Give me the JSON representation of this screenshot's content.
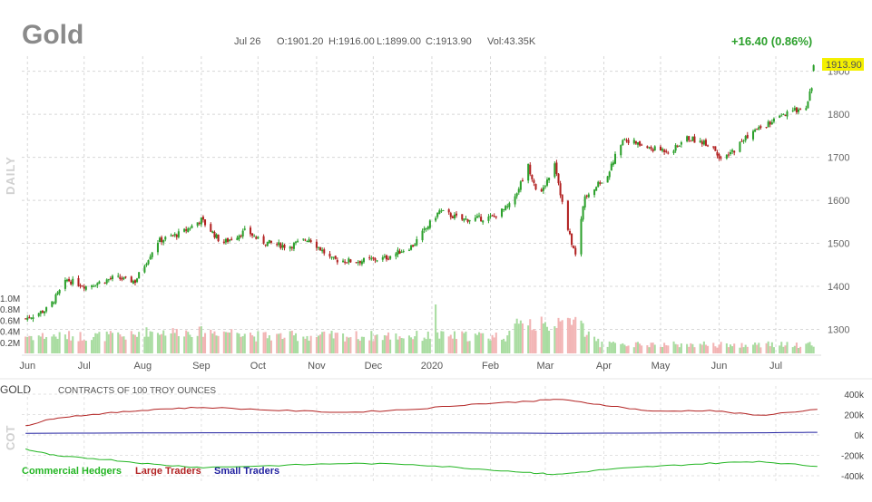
{
  "header": {
    "title": "Gold",
    "date": "Jul 26",
    "open": "O:1901.20",
    "high": "H:1916.00",
    "low": "L:1899.00",
    "close": "C:1913.90",
    "volume": "Vol:43.35K",
    "change": "+16.40 (0.86%)"
  },
  "labels": {
    "daily": "DAILY",
    "cot": "COT",
    "cot_symbol": "GOLD",
    "cot_units": "CONTRACTS OF 100 TROY OUNCES"
  },
  "colors": {
    "up": "#2ca02c",
    "down": "#b22222",
    "vol_up": "#a8dca0",
    "vol_down": "#f2b4b4",
    "last_price_bg": "#f4f000",
    "commercial": "#22b522",
    "large": "#b22222",
    "small": "#1f1f9f"
  },
  "chart_data": [
    {
      "type": "candlestick",
      "title": "Gold",
      "x_labels": [
        "Jun",
        "Jul",
        "Aug",
        "Sep",
        "Oct",
        "Nov",
        "Dec",
        "2020",
        "Feb",
        "Mar",
        "Apr",
        "May",
        "Jun",
        "Jul"
      ],
      "y_ticks": [
        1300,
        1400,
        1500,
        1600,
        1700,
        1800,
        1900
      ],
      "ylim": [
        1240,
        1935
      ],
      "last_price": "1913.90",
      "price_anchors": [
        [
          "2019-06-03",
          1325
        ],
        [
          "2019-06-15",
          1348
        ],
        [
          "2019-06-25",
          1415
        ],
        [
          "2019-07-05",
          1400
        ],
        [
          "2019-07-20",
          1420
        ],
        [
          "2019-07-31",
          1412
        ],
        [
          "2019-08-12",
          1505
        ],
        [
          "2019-08-25",
          1525
        ],
        [
          "2019-09-04",
          1555
        ],
        [
          "2019-09-15",
          1500
        ],
        [
          "2019-09-28",
          1530
        ],
        [
          "2019-10-05",
          1505
        ],
        [
          "2019-10-20",
          1492
        ],
        [
          "2019-10-31",
          1512
        ],
        [
          "2019-11-12",
          1462
        ],
        [
          "2019-11-25",
          1458
        ],
        [
          "2019-12-10",
          1465
        ],
        [
          "2019-12-25",
          1495
        ],
        [
          "2020-01-08",
          1575
        ],
        [
          "2020-01-20",
          1555
        ],
        [
          "2020-02-05",
          1560
        ],
        [
          "2020-02-15",
          1590
        ],
        [
          "2020-02-24",
          1680
        ],
        [
          "2020-03-01",
          1605
        ],
        [
          "2020-03-09",
          1690
        ],
        [
          "2020-03-15",
          1545
        ],
        [
          "2020-03-20",
          1472
        ],
        [
          "2020-03-25",
          1612
        ],
        [
          "2020-04-05",
          1650
        ],
        [
          "2020-04-14",
          1745
        ],
        [
          "2020-04-28",
          1720
        ],
        [
          "2020-05-10",
          1715
        ],
        [
          "2020-05-18",
          1745
        ],
        [
          "2020-05-31",
          1730
        ],
        [
          "2020-06-06",
          1690
        ],
        [
          "2020-06-20",
          1755
        ],
        [
          "2020-07-01",
          1780
        ],
        [
          "2020-07-12",
          1805
        ],
        [
          "2020-07-20",
          1820
        ],
        [
          "2020-07-26",
          1913.9
        ]
      ],
      "volume_ticks": [
        "1.0M",
        "0.8M",
        "0.6M",
        "0.4M",
        "0.2M"
      ],
      "volume_max_m": 1.0
    },
    {
      "type": "line",
      "title": "COT",
      "y_ticks": [
        "400k",
        "200k",
        "0k",
        "-200k",
        "-400k"
      ],
      "ylim": [
        -400000,
        400000
      ],
      "series": [
        {
          "name": "Commercial Hedgers",
          "points": [
            [
              "2019-06-03",
              -130000
            ],
            [
              "2019-06-20",
              -200000
            ],
            [
              "2019-07-15",
              -230000
            ],
            [
              "2019-08-10",
              -280000
            ],
            [
              "2019-09-05",
              -310000
            ],
            [
              "2019-10-15",
              -290000
            ],
            [
              "2019-11-20",
              -270000
            ],
            [
              "2019-12-25",
              -280000
            ],
            [
              "2020-01-25",
              -320000
            ],
            [
              "2020-02-25",
              -360000
            ],
            [
              "2020-03-10",
              -380000
            ],
            [
              "2020-04-05",
              -330000
            ],
            [
              "2020-04-30",
              -300000
            ],
            [
              "2020-05-30",
              -270000
            ],
            [
              "2020-06-25",
              -250000
            ],
            [
              "2020-07-26",
              -300000
            ]
          ]
        },
        {
          "name": "Large Traders",
          "points": [
            [
              "2019-06-03",
              100000
            ],
            [
              "2019-06-20",
              180000
            ],
            [
              "2019-07-15",
              220000
            ],
            [
              "2019-08-10",
              260000
            ],
            [
              "2019-09-05",
              280000
            ],
            [
              "2019-10-15",
              250000
            ],
            [
              "2019-11-20",
              230000
            ],
            [
              "2019-12-25",
              260000
            ],
            [
              "2020-01-25",
              310000
            ],
            [
              "2020-02-25",
              340000
            ],
            [
              "2020-03-10",
              360000
            ],
            [
              "2020-04-05",
              300000
            ],
            [
              "2020-04-30",
              240000
            ],
            [
              "2020-05-30",
              250000
            ],
            [
              "2020-06-25",
              200000
            ],
            [
              "2020-07-26",
              260000
            ]
          ]
        },
        {
          "name": "Small Traders",
          "points": [
            [
              "2019-06-03",
              25000
            ],
            [
              "2019-09-05",
              30000
            ],
            [
              "2019-12-25",
              30000
            ],
            [
              "2020-03-10",
              25000
            ],
            [
              "2020-06-25",
              30000
            ],
            [
              "2020-07-26",
              35000
            ]
          ]
        }
      ]
    }
  ]
}
